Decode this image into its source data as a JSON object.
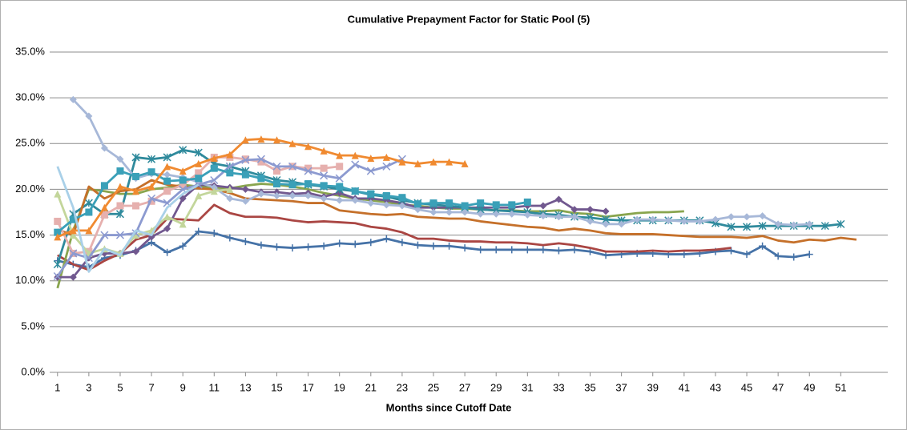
{
  "chart_data": {
    "type": "line",
    "title": "Cumulative Prepayment Factor for Static Pool (5)",
    "x_label": "Months since Cutoff Date",
    "x": [
      1,
      2,
      3,
      4,
      5,
      6,
      7,
      8,
      9,
      10,
      11,
      12,
      13,
      14,
      15,
      16,
      17,
      18,
      19,
      20,
      21,
      22,
      23,
      24,
      25,
      26,
      27,
      28,
      29,
      30,
      31,
      32,
      33,
      34,
      35,
      36,
      37,
      38,
      39,
      40,
      41,
      42,
      43,
      44,
      45,
      46,
      47,
      48,
      49,
      50,
      51,
      52
    ],
    "xlim": [
      0.5,
      54
    ],
    "xticks": [
      1,
      3,
      5,
      7,
      9,
      11,
      13,
      15,
      17,
      19,
      21,
      23,
      25,
      27,
      29,
      31,
      33,
      35,
      37,
      39,
      41,
      43,
      45,
      47,
      49,
      51
    ],
    "ylim": [
      0,
      35
    ],
    "yticks": [
      {
        "value": 0,
        "label": "0.0%"
      },
      {
        "value": 5,
        "label": "5.0%"
      },
      {
        "value": 10,
        "label": "10.0%"
      },
      {
        "value": 15,
        "label": "15.0%"
      },
      {
        "value": 20,
        "label": "20.0%"
      },
      {
        "value": 25,
        "label": "25.0%"
      },
      {
        "value": 30,
        "label": "30.0%"
      },
      {
        "value": 35,
        "label": "35.0%"
      }
    ],
    "grid": true,
    "series": [
      {
        "color": "#4572a7",
        "marker": "plus",
        "values": [
          12.2,
          11.8,
          11.5,
          12.5,
          12.8,
          13.3,
          14.2,
          13.1,
          13.8,
          15.4,
          15.2,
          14.7,
          14.3,
          13.9,
          13.7,
          13.6,
          13.7,
          13.8,
          14.1,
          14.0,
          14.2,
          14.6,
          14.2,
          13.9,
          13.8,
          13.8,
          13.6,
          13.4,
          13.4,
          13.4,
          13.4,
          13.4,
          13.3,
          13.4,
          13.2,
          12.8,
          12.9,
          13.0,
          13.0,
          12.9,
          12.9,
          13.0,
          13.2,
          13.3,
          12.9,
          13.8,
          12.7,
          12.6,
          12.9,
          null,
          null,
          null
        ]
      },
      {
        "color": "#aa4643",
        "marker": "none",
        "values": [
          12.8,
          11.8,
          11.2,
          12.2,
          13.0,
          14.5,
          15.0,
          16.8,
          16.7,
          16.6,
          18.3,
          17.4,
          17.0,
          17.0,
          16.9,
          16.6,
          16.4,
          16.5,
          16.4,
          16.3,
          15.9,
          15.7,
          15.3,
          14.6,
          14.6,
          14.4,
          14.3,
          14.3,
          14.2,
          14.2,
          14.1,
          13.9,
          14.1,
          13.9,
          13.6,
          13.2,
          13.2,
          13.2,
          13.3,
          13.2,
          13.3,
          13.3,
          13.4,
          13.6,
          null,
          null,
          null,
          null,
          null,
          null,
          null,
          null
        ]
      },
      {
        "color": "#89a54e",
        "marker": "none",
        "values": [
          9.2,
          15.5,
          20.0,
          19.8,
          19.5,
          19.5,
          20.0,
          20.2,
          20.5,
          20.3,
          20.2,
          20.1,
          20.4,
          20.6,
          20.5,
          20.3,
          20.0,
          19.6,
          19.3,
          19.0,
          18.8,
          18.6,
          18.3,
          18.2,
          18.0,
          17.9,
          17.9,
          17.8,
          17.7,
          17.7,
          17.6,
          17.6,
          17.7,
          17.4,
          17.3,
          17.0,
          17.2,
          17.4,
          17.5,
          17.5,
          17.6,
          null,
          null,
          null,
          null,
          null,
          null,
          null,
          null,
          null,
          null,
          null
        ]
      },
      {
        "color": "#71588f",
        "marker": "diamond",
        "values": [
          10.4,
          10.4,
          12.5,
          13.0,
          13.0,
          13.2,
          14.8,
          15.7,
          19.0,
          20.5,
          20.4,
          20.2,
          20.0,
          19.7,
          19.7,
          19.5,
          19.6,
          19.2,
          19.6,
          19.0,
          19.0,
          18.8,
          18.5,
          18.0,
          18.0,
          18.0,
          18.0,
          18.0,
          18.0,
          18.0,
          18.2,
          18.2,
          18.9,
          17.8,
          17.8,
          17.6,
          null,
          null,
          null,
          null,
          null,
          null,
          null,
          null,
          null,
          null,
          null,
          null,
          null,
          null,
          null,
          null
        ]
      },
      {
        "color": "#2f8a9c",
        "marker": "star",
        "values": [
          11.8,
          17.3,
          18.5,
          17.3,
          17.3,
          23.5,
          23.3,
          23.5,
          24.3,
          24.0,
          22.8,
          22.5,
          22.0,
          21.5,
          21.0,
          20.8,
          20.5,
          20.3,
          20.0,
          19.8,
          19.4,
          19.2,
          18.8,
          18.5,
          18.3,
          18.2,
          18.0,
          17.8,
          17.7,
          17.6,
          17.5,
          17.3,
          17.2,
          17.0,
          16.9,
          16.7,
          16.6,
          16.6,
          16.6,
          16.6,
          16.6,
          16.6,
          16.3,
          15.9,
          15.9,
          16.0,
          16.0,
          16.0,
          16.0,
          16.0,
          16.2,
          null
        ]
      },
      {
        "color": "#c5702a",
        "marker": "none",
        "values": [
          15.6,
          15.0,
          20.3,
          19.0,
          19.8,
          20.0,
          21.0,
          20.5,
          20.3,
          20.1,
          20.0,
          19.6,
          19.0,
          18.9,
          18.8,
          18.7,
          18.5,
          18.5,
          17.7,
          17.5,
          17.3,
          17.2,
          17.3,
          17.0,
          16.9,
          16.8,
          16.8,
          16.5,
          16.3,
          16.1,
          15.9,
          15.8,
          15.5,
          15.7,
          15.5,
          15.2,
          15.1,
          15.1,
          15.1,
          15.0,
          14.9,
          14.8,
          14.8,
          14.8,
          14.7,
          14.9,
          14.4,
          14.2,
          14.5,
          14.4,
          14.7,
          14.5
        ]
      },
      {
        "color": "#a7b8d8",
        "marker": "diamond",
        "values": [
          null,
          29.8,
          28.0,
          24.5,
          23.3,
          21.2,
          21.7,
          21.6,
          21.3,
          20.8,
          20.2,
          19.0,
          18.7,
          19.5,
          19.3,
          19.3,
          19.3,
          19.0,
          18.8,
          18.8,
          18.5,
          18.3,
          18.2,
          17.8,
          17.5,
          17.5,
          17.5,
          17.3,
          17.3,
          17.3,
          17.2,
          17.1,
          17.0,
          17.0,
          16.5,
          16.2,
          16.2,
          16.7,
          16.7,
          16.6,
          16.5,
          16.5,
          16.7,
          17.0,
          17.0,
          17.1,
          16.2,
          16.1,
          16.2,
          null,
          null,
          null
        ]
      },
      {
        "color": "#e6b0ae",
        "marker": "square",
        "values": [
          16.5,
          13.0,
          13.2,
          17.2,
          18.2,
          18.2,
          18.7,
          19.8,
          20.5,
          21.8,
          23.5,
          23.5,
          23.3,
          23.0,
          22.0,
          22.5,
          22.3,
          22.3,
          22.5,
          null,
          null,
          null,
          null,
          null,
          null,
          null,
          null,
          null,
          null,
          null,
          null,
          null,
          null,
          null,
          null,
          null,
          null,
          null,
          null,
          null,
          null,
          null,
          null,
          null,
          null,
          null,
          null,
          null,
          null,
          null,
          null,
          null
        ]
      },
      {
        "color": "#c3d69b",
        "marker": "triangle",
        "values": [
          19.5,
          15.0,
          13.0,
          13.5,
          13.0,
          15.0,
          15.5,
          17.0,
          16.2,
          19.3,
          19.8,
          20.0,
          null,
          null,
          null,
          null,
          null,
          null,
          null,
          null,
          null,
          null,
          null,
          null,
          null,
          null,
          null,
          null,
          null,
          null,
          null,
          null,
          null,
          null,
          null,
          null,
          null,
          null,
          null,
          null,
          null,
          null,
          null,
          null,
          null,
          null,
          null,
          null,
          null,
          null,
          null,
          null
        ]
      },
      {
        "color": "#8c9ad0",
        "marker": "x",
        "values": [
          10.5,
          13.0,
          12.5,
          15.0,
          15.0,
          15.2,
          19.0,
          18.5,
          20.0,
          20.5,
          21.0,
          22.5,
          23.2,
          23.3,
          22.5,
          22.5,
          22.0,
          21.5,
          21.2,
          22.7,
          22.0,
          22.5,
          23.3,
          null,
          null,
          null,
          null,
          null,
          null,
          null,
          null,
          null,
          null,
          null,
          null,
          null,
          null,
          null,
          null,
          null,
          null,
          null,
          null,
          null,
          null,
          null,
          null,
          null,
          null,
          null,
          null,
          null
        ]
      },
      {
        "color": "#3aa0b8",
        "marker": "square",
        "values": [
          15.3,
          16.7,
          17.5,
          20.4,
          22.0,
          21.4,
          21.9,
          20.9,
          21.0,
          21.2,
          22.3,
          21.8,
          21.6,
          21.2,
          20.6,
          20.5,
          20.6,
          20.4,
          20.3,
          19.8,
          19.5,
          19.3,
          19.1,
          18.4,
          18.5,
          18.5,
          18.2,
          18.5,
          18.3,
          18.3,
          18.6,
          null,
          null,
          null,
          null,
          null,
          null,
          null,
          null,
          null,
          null,
          null,
          null,
          null,
          null,
          null,
          null,
          null,
          null,
          null,
          null,
          null
        ]
      },
      {
        "color": "#f08a30",
        "marker": "triangle",
        "values": [
          14.8,
          15.5,
          15.5,
          18.0,
          20.3,
          19.8,
          20.3,
          22.5,
          22.0,
          22.8,
          23.4,
          23.8,
          25.4,
          25.5,
          25.4,
          25.0,
          24.7,
          24.2,
          23.7,
          23.7,
          23.4,
          23.5,
          23.0,
          22.8,
          23.0,
          23.0,
          22.8,
          null,
          null,
          null,
          null,
          null,
          null,
          null,
          null,
          null,
          null,
          null,
          null,
          null,
          null,
          null,
          null,
          null,
          null,
          null,
          null,
          null,
          null,
          null,
          null,
          null
        ]
      },
      {
        "color": "#a9d0e8",
        "marker": "none",
        "values": [
          22.5,
          18.0,
          11.0,
          13.5,
          12.8,
          15.5,
          15.0,
          18.0,
          19.5,
          20.5,
          null,
          null,
          null,
          null,
          null,
          null,
          null,
          null,
          null,
          null,
          null,
          null,
          null,
          null,
          null,
          null,
          null,
          null,
          null,
          null,
          null,
          null,
          null,
          null,
          null,
          null,
          null,
          null,
          null,
          null,
          null,
          null,
          null,
          null,
          null,
          null,
          null,
          null,
          null,
          null,
          null,
          null
        ]
      }
    ]
  }
}
